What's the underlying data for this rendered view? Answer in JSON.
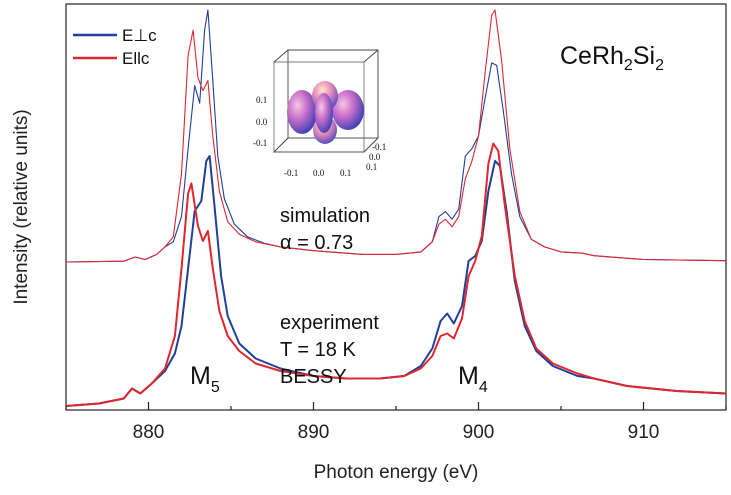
{
  "chart_data": {
    "type": "line",
    "xlabel": "Photon energy (eV)",
    "ylabel": "Intensity (relative units)",
    "xlim": [
      875,
      915
    ],
    "x_ticks": [
      880,
      890,
      900,
      910
    ],
    "y_ticks_shown": false,
    "legend": {
      "placement": "top-left",
      "entries": [
        {
          "label": "E⊥c",
          "color": "#1f3f99"
        },
        {
          "label": "Ellc",
          "color": "#e0262f"
        }
      ]
    },
    "compound": {
      "text": "CeRh",
      "sub1": "2",
      "mid": "Si",
      "sub2": "2"
    },
    "annotations": {
      "simulation": {
        "line1": "simulation",
        "line2": "α = 0.73"
      },
      "experiment": {
        "line1": "experiment",
        "line2": "T = 18 K",
        "line3": "BESSY"
      },
      "m5": {
        "main": "M",
        "sub": "5"
      },
      "m4": {
        "main": "M",
        "sub": "4"
      }
    },
    "inset": {
      "description_free": true,
      "ticks_left": [
        "0.1",
        "0.0",
        "-0.1"
      ],
      "ticks_bottom": [
        "-0.1",
        "0.0",
        "0.1"
      ],
      "ticks_right": [
        "-0.1",
        "0.0",
        "0.1"
      ]
    },
    "series": [
      {
        "name": "E⊥c",
        "group": "simulation",
        "color": "#1f3f99",
        "width": 1.1,
        "points": [
          [
            875,
            0.0
          ],
          [
            878.5,
            0.003
          ],
          [
            879.2,
            0.02
          ],
          [
            879.8,
            0.01
          ],
          [
            880.5,
            0.03
          ],
          [
            881.0,
            0.06
          ],
          [
            881.5,
            0.08
          ],
          [
            882.0,
            0.18
          ],
          [
            882.4,
            0.45
          ],
          [
            882.8,
            0.7
          ],
          [
            883.1,
            0.63
          ],
          [
            883.4,
            0.92
          ],
          [
            883.6,
            1.0
          ],
          [
            883.9,
            0.72
          ],
          [
            884.2,
            0.42
          ],
          [
            884.6,
            0.25
          ],
          [
            885.2,
            0.15
          ],
          [
            886,
            0.1
          ],
          [
            887,
            0.075
          ],
          [
            888,
            0.06
          ],
          [
            890,
            0.045
          ],
          [
            893,
            0.03
          ],
          [
            895,
            0.03
          ],
          [
            896.5,
            0.04
          ],
          [
            897.2,
            0.08
          ],
          [
            897.6,
            0.18
          ],
          [
            898.0,
            0.2
          ],
          [
            898.4,
            0.17
          ],
          [
            898.8,
            0.21
          ],
          [
            899.2,
            0.42
          ],
          [
            899.6,
            0.45
          ],
          [
            900.0,
            0.5
          ],
          [
            900.4,
            0.65
          ],
          [
            900.8,
            0.79
          ],
          [
            901.1,
            0.78
          ],
          [
            901.5,
            0.6
          ],
          [
            902.0,
            0.35
          ],
          [
            902.5,
            0.18
          ],
          [
            903.2,
            0.09
          ],
          [
            904,
            0.06
          ],
          [
            905,
            0.04
          ],
          [
            906.3,
            0.035
          ],
          [
            907,
            0.025
          ],
          [
            910,
            0.01
          ],
          [
            915,
            0.005
          ]
        ]
      },
      {
        "name": "Ellc",
        "group": "simulation",
        "color": "#e0262f",
        "width": 1.1,
        "points": [
          [
            875,
            0.0
          ],
          [
            878.5,
            0.003
          ],
          [
            879.2,
            0.02
          ],
          [
            879.8,
            0.01
          ],
          [
            880.5,
            0.03
          ],
          [
            881.0,
            0.06
          ],
          [
            881.5,
            0.1
          ],
          [
            882.0,
            0.35
          ],
          [
            882.4,
            0.82
          ],
          [
            882.7,
            0.92
          ],
          [
            883.0,
            0.73
          ],
          [
            883.3,
            0.68
          ],
          [
            883.6,
            0.72
          ],
          [
            883.9,
            0.5
          ],
          [
            884.3,
            0.28
          ],
          [
            884.8,
            0.16
          ],
          [
            885.5,
            0.11
          ],
          [
            886.5,
            0.08
          ],
          [
            888,
            0.06
          ],
          [
            890,
            0.045
          ],
          [
            893,
            0.03
          ],
          [
            895,
            0.03
          ],
          [
            896.5,
            0.04
          ],
          [
            897.2,
            0.08
          ],
          [
            897.6,
            0.15
          ],
          [
            898.0,
            0.17
          ],
          [
            898.4,
            0.14
          ],
          [
            898.8,
            0.18
          ],
          [
            899.2,
            0.33
          ],
          [
            899.6,
            0.4
          ],
          [
            900.0,
            0.5
          ],
          [
            900.4,
            0.75
          ],
          [
            900.8,
            0.98
          ],
          [
            901.0,
            1.0
          ],
          [
            901.4,
            0.8
          ],
          [
            901.9,
            0.45
          ],
          [
            902.5,
            0.2
          ],
          [
            903.2,
            0.09
          ],
          [
            904,
            0.06
          ],
          [
            905,
            0.04
          ],
          [
            906.3,
            0.035
          ],
          [
            907,
            0.025
          ],
          [
            910,
            0.01
          ],
          [
            915,
            0.005
          ]
        ]
      },
      {
        "name": "E⊥c",
        "group": "experiment",
        "color": "#1f3f99",
        "width": 2.0,
        "points": [
          [
            875,
            0.0
          ],
          [
            877,
            0.01
          ],
          [
            878.5,
            0.03
          ],
          [
            879.0,
            0.07
          ],
          [
            879.5,
            0.05
          ],
          [
            880.2,
            0.09
          ],
          [
            881.0,
            0.14
          ],
          [
            881.6,
            0.21
          ],
          [
            882.0,
            0.32
          ],
          [
            882.4,
            0.55
          ],
          [
            882.8,
            0.78
          ],
          [
            883.2,
            0.82
          ],
          [
            883.5,
            0.98
          ],
          [
            883.7,
            1.0
          ],
          [
            884.0,
            0.8
          ],
          [
            884.4,
            0.52
          ],
          [
            884.8,
            0.36
          ],
          [
            885.5,
            0.25
          ],
          [
            886.5,
            0.19
          ],
          [
            888,
            0.15
          ],
          [
            890,
            0.12
          ],
          [
            892,
            0.11
          ],
          [
            894,
            0.11
          ],
          [
            895.5,
            0.12
          ],
          [
            896.5,
            0.16
          ],
          [
            897.2,
            0.23
          ],
          [
            897.7,
            0.34
          ],
          [
            898.1,
            0.37
          ],
          [
            898.5,
            0.33
          ],
          [
            899.0,
            0.4
          ],
          [
            899.4,
            0.58
          ],
          [
            899.8,
            0.6
          ],
          [
            900.2,
            0.66
          ],
          [
            900.6,
            0.86
          ],
          [
            901.0,
            0.98
          ],
          [
            901.3,
            0.96
          ],
          [
            901.7,
            0.78
          ],
          [
            902.2,
            0.5
          ],
          [
            902.8,
            0.32
          ],
          [
            903.5,
            0.22
          ],
          [
            904.5,
            0.16
          ],
          [
            906,
            0.12
          ],
          [
            907,
            0.11
          ],
          [
            909,
            0.08
          ],
          [
            912,
            0.06
          ],
          [
            915,
            0.05
          ]
        ]
      },
      {
        "name": "Ellc",
        "group": "experiment",
        "color": "#e0262f",
        "width": 2.0,
        "points": [
          [
            875,
            0.0
          ],
          [
            877,
            0.01
          ],
          [
            878.5,
            0.03
          ],
          [
            879.0,
            0.07
          ],
          [
            879.5,
            0.05
          ],
          [
            880.2,
            0.09
          ],
          [
            881.0,
            0.15
          ],
          [
            881.6,
            0.28
          ],
          [
            882.0,
            0.55
          ],
          [
            882.4,
            0.85
          ],
          [
            882.6,
            0.89
          ],
          [
            883.0,
            0.72
          ],
          [
            883.3,
            0.66
          ],
          [
            883.6,
            0.7
          ],
          [
            883.9,
            0.55
          ],
          [
            884.3,
            0.38
          ],
          [
            884.8,
            0.28
          ],
          [
            885.5,
            0.22
          ],
          [
            886.5,
            0.17
          ],
          [
            888,
            0.14
          ],
          [
            890,
            0.12
          ],
          [
            892,
            0.11
          ],
          [
            894,
            0.11
          ],
          [
            895.5,
            0.12
          ],
          [
            896.5,
            0.15
          ],
          [
            897.2,
            0.2
          ],
          [
            897.7,
            0.28
          ],
          [
            898.1,
            0.29
          ],
          [
            898.5,
            0.27
          ],
          [
            899.0,
            0.35
          ],
          [
            899.4,
            0.52
          ],
          [
            899.8,
            0.58
          ],
          [
            900.2,
            0.68
          ],
          [
            900.6,
            0.97
          ],
          [
            900.9,
            1.05
          ],
          [
            901.2,
            1.02
          ],
          [
            901.6,
            0.8
          ],
          [
            902.2,
            0.52
          ],
          [
            902.8,
            0.34
          ],
          [
            903.5,
            0.23
          ],
          [
            904.5,
            0.17
          ],
          [
            906,
            0.13
          ],
          [
            907,
            0.11
          ],
          [
            909,
            0.08
          ],
          [
            912,
            0.06
          ],
          [
            915,
            0.05
          ]
        ]
      }
    ]
  }
}
